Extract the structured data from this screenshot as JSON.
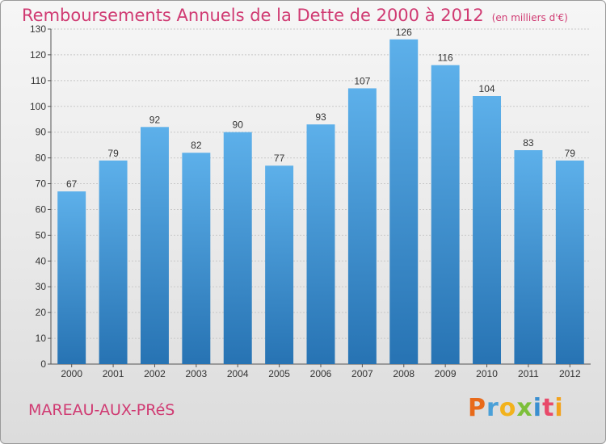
{
  "header": {
    "title": "Remboursements Annuels de la Dette de 2000 à 2012",
    "unit": "(en milliers d'€)"
  },
  "footer": {
    "commune": "MAREAU-AUX-PRéS",
    "logo_letters": [
      "P",
      "r",
      "o",
      "x",
      "i",
      "t",
      "i"
    ],
    "logo_colors": [
      "#e86a1a",
      "#4aa0d8",
      "#f2b21c",
      "#7cbf3a",
      "#3a8fd0",
      "#e84a6a",
      "#f2a21c"
    ]
  },
  "colors": {
    "bar_top": "#5db0ea",
    "bar_bottom": "#2773b3",
    "text_accent": "#d03a72",
    "grid": "#c8c8c8"
  },
  "chart_data": {
    "type": "bar",
    "categories": [
      "2000",
      "2001",
      "2002",
      "2003",
      "2004",
      "2005",
      "2006",
      "2007",
      "2008",
      "2009",
      "2010",
      "2011",
      "2012"
    ],
    "values": [
      67,
      79,
      92,
      82,
      90,
      77,
      93,
      107,
      126,
      116,
      104,
      83,
      79
    ],
    "ylim": [
      0,
      130
    ],
    "yticks": [
      0,
      10,
      20,
      30,
      40,
      50,
      60,
      70,
      80,
      90,
      100,
      110,
      120,
      130
    ],
    "grid": true,
    "xlabel": "",
    "ylabel": ""
  }
}
